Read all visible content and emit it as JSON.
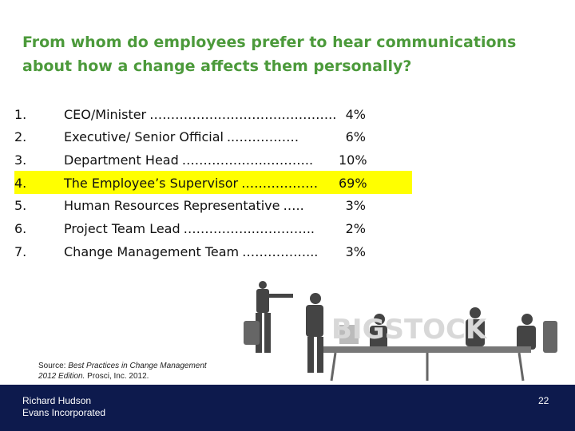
{
  "title": {
    "line1": "From whom do employees prefer to hear communications",
    "line2": "about how a change affects them personally?"
  },
  "items": [
    {
      "number": "1.",
      "label": "CEO/Minister",
      "leader": "……………………………………..",
      "value": "4%"
    },
    {
      "number": "2.",
      "label": "Executive/ Senior Official",
      "leader": "..……………",
      "value": "6%"
    },
    {
      "number": "3.",
      "label": "Department Head",
      "leader": "………………..………..",
      "value": "10%"
    },
    {
      "number": "4.",
      "label": "The Employee’s Supervisor",
      "leader": "………………",
      "value": "69%",
      "highlighted": true
    },
    {
      "number": "5.",
      "label": "Human Resources Representative",
      "leader": "…..",
      "value": "3%"
    },
    {
      "number": "6.",
      "label": "Project Team Lead",
      "leader": "……………..…………..",
      "value": "2%"
    },
    {
      "number": "7.",
      "label": "Change Management Team",
      "leader": "……………...",
      "value": "3%"
    }
  ],
  "source": {
    "prefix": "Source:",
    "work": "Best Practices in Change Management",
    "edition": "2012 Edition.",
    "publisher": "Prosci, Inc. 2012."
  },
  "footer": {
    "name": "Richard Hudson",
    "company": "Evans Incorporated",
    "page": "22"
  }
}
